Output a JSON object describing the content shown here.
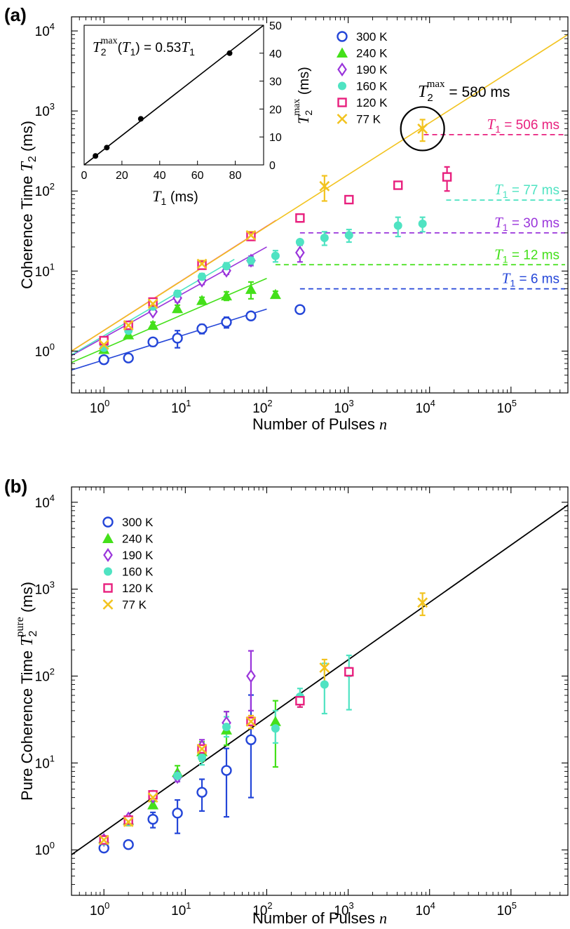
{
  "chart_data": [
    {
      "panel": "(a)",
      "type": "scatter",
      "xlabel": "Number of Pulses n",
      "xlabel_main": "Number of Pulses",
      "xlabel_var": "n",
      "ylabel_main": "Coherence Time",
      "ylabel_var": "T",
      "ylabel_sub": "2",
      "ylabel_unit": "(ms)",
      "x_scale": "log",
      "y_scale": "log",
      "xlim": [
        0.4,
        500000
      ],
      "ylim": [
        0.3,
        15000
      ],
      "x_ticks": [
        {
          "label": "10",
          "exp": "0"
        },
        {
          "label": "10",
          "exp": "1"
        },
        {
          "label": "10",
          "exp": "2"
        },
        {
          "label": "10",
          "exp": "3"
        },
        {
          "label": "10",
          "exp": "4"
        },
        {
          "label": "10",
          "exp": "5"
        }
      ],
      "y_ticks": [
        {
          "label": "10",
          "exp": "0"
        },
        {
          "label": "10",
          "exp": "1"
        },
        {
          "label": "10",
          "exp": "2"
        },
        {
          "label": "10",
          "exp": "3"
        },
        {
          "label": "10",
          "exp": "4"
        }
      ],
      "legend": {
        "placement": "top-center"
      },
      "series": [
        {
          "name": "300 K",
          "color": "#2446d8",
          "marker": "open-circle",
          "points": [
            [
              1,
              0.78
            ],
            [
              2,
              0.82
            ],
            [
              4,
              1.3
            ],
            [
              8,
              1.45
            ],
            [
              16,
              1.9
            ],
            [
              32,
              2.3
            ],
            [
              64,
              2.75
            ],
            [
              256,
              3.3
            ]
          ],
          "errors": [
            0.08,
            0.06,
            0.15,
            0.35,
            0.25,
            0.35,
            0.2,
            0.3
          ],
          "fit": {
            "x": [
              0.4,
              100
            ],
            "y": [
              0.58,
              3.35
            ]
          }
        },
        {
          "name": "240 K",
          "color": "#44e01a",
          "marker": "filled-triangle",
          "points": [
            [
              1,
              1.05
            ],
            [
              2,
              1.6
            ],
            [
              4,
              2.1
            ],
            [
              8,
              3.4
            ],
            [
              16,
              4.3
            ],
            [
              32,
              4.9
            ],
            [
              64,
              5.9
            ],
            [
              128,
              5.1
            ]
          ],
          "errors": [
            0.08,
            0.15,
            0.2,
            0.35,
            0.4,
            0.6,
            1.4,
            0.5
          ],
          "fit": {
            "x": [
              0.4,
              100
            ],
            "y": [
              0.72,
              8.1
            ]
          }
        },
        {
          "name": "190 K",
          "color": "#9a35db",
          "marker": "open-diamond",
          "points": [
            [
              1,
              1.2
            ],
            [
              2,
              2.0
            ],
            [
              4,
              3.1
            ],
            [
              8,
              4.6
            ],
            [
              16,
              7.6
            ],
            [
              32,
              10.1
            ],
            [
              64,
              13.5
            ],
            [
              256,
              17
            ]
          ],
          "errors": [
            0.1,
            0.15,
            0.25,
            0.5,
            0.8,
            1.0,
            1.8,
            4
          ],
          "fit": {
            "x": [
              0.4,
              100
            ],
            "y": [
              0.88,
              20
            ]
          }
        },
        {
          "name": "160 K",
          "color": "#4fe3c2",
          "marker": "filled-circle",
          "points": [
            [
              1,
              1.1
            ],
            [
              2,
              1.8
            ],
            [
              4,
              3.6
            ],
            [
              8,
              5.2
            ],
            [
              16,
              8.5
            ],
            [
              32,
              11.5
            ],
            [
              64,
              13.5
            ],
            [
              128,
              15.5
            ],
            [
              256,
              23
            ],
            [
              512,
              26
            ],
            [
              1024,
              28
            ],
            [
              4096,
              37
            ],
            [
              8192,
              39
            ]
          ],
          "errors": [
            0.1,
            0.15,
            0.3,
            0.5,
            0.8,
            1.2,
            1.5,
            2.5,
            2,
            5,
            5,
            10,
            8
          ],
          "fit": {
            "x": [
              0.4,
              40
            ],
            "y": [
              0.9,
              14
            ]
          }
        },
        {
          "name": "120 K",
          "color": "#e8207e",
          "marker": "open-square",
          "points": [
            [
              1,
              1.35
            ],
            [
              2,
              2.1
            ],
            [
              4,
              4.1
            ],
            [
              16,
              11.8
            ],
            [
              64,
              27
            ],
            [
              256,
              46
            ],
            [
              1024,
              78
            ],
            [
              4096,
              118
            ],
            [
              16384,
              150
            ]
          ],
          "errors": [
            0.1,
            0.2,
            0.3,
            1.0,
            2.5,
            5,
            8,
            12,
            50
          ],
          "fit": {
            "x": [
              0.4,
              130
            ],
            "y": [
              1.0,
              43
            ]
          }
        },
        {
          "name": "77 K",
          "color": "#f2c31f",
          "marker": "x-cross",
          "points": [
            [
              1,
              1.2
            ],
            [
              2,
              2.1
            ],
            [
              4,
              3.9
            ],
            [
              16,
              12.3
            ],
            [
              64,
              28
            ],
            [
              512,
              115
            ],
            [
              8192,
              600
            ]
          ],
          "errors": [
            0.1,
            0.2,
            0.3,
            1.2,
            3,
            40,
            180
          ],
          "fit": {
            "x": [
              0.4,
              500000
            ],
            "y": [
              1.0,
              9000
            ]
          }
        }
      ],
      "limits": [
        {
          "label_var": "T",
          "label_sub": "1",
          "label_value": "= 506 ms",
          "color": "#e8207e",
          "y": 506,
          "x_start": 8500
        },
        {
          "label_var": "T",
          "label_sub": "1",
          "label_value": "= 77 ms",
          "color": "#4fe3c2",
          "y": 77,
          "x_start": 16000
        },
        {
          "label_var": "T",
          "label_sub": "1",
          "label_value": "= 30 ms",
          "color": "#9a35db",
          "y": 30,
          "x_start": 256
        },
        {
          "label_var": "T",
          "label_sub": "1",
          "label_value": "= 12 ms",
          "color": "#44e01a",
          "y": 12,
          "x_start": 128
        },
        {
          "label_var": "T",
          "label_sub": "1",
          "label_value": "= 6 ms",
          "color": "#2446d8",
          "y": 6,
          "x_start": 256
        }
      ],
      "annotation": {
        "var": "T",
        "sub": "2",
        "sup": "max",
        "value": "= 580 ms",
        "circle_x": 8192,
        "circle_y": 600
      },
      "inset": {
        "type": "scatter",
        "equation_lhs_var": "T",
        "equation_sub": "2",
        "equation_sup": "max",
        "equation_arg_var": "T",
        "equation_arg_sub": "1",
        "equation_rhs": "= 0.53",
        "equation_rhs_var": "T",
        "equation_rhs_sub": "1",
        "equation_text": "T2max(T1) = 0.53T1",
        "xlabel_var": "T",
        "xlabel_sub": "1",
        "xlabel_unit": "(ms)",
        "ylabel_var": "T",
        "ylabel_sub": "2",
        "ylabel_sup": "max",
        "ylabel_unit": "(ms)",
        "xlim": [
          0,
          95
        ],
        "ylim": [
          0,
          50
        ],
        "x_ticks": [
          "0",
          "20",
          "40",
          "60",
          "80"
        ],
        "y_ticks": [
          "0",
          "10",
          "20",
          "30",
          "40",
          "50"
        ],
        "points": [
          [
            6,
            3.2
          ],
          [
            12,
            6.2
          ],
          [
            30,
            16.5
          ],
          [
            77,
            40
          ]
        ],
        "fit": {
          "x": [
            0,
            95
          ],
          "y": [
            0,
            50.35
          ]
        }
      }
    },
    {
      "panel": "(b)",
      "type": "scatter",
      "xlabel": "Number of Pulses n",
      "xlabel_main": "Number of Pulses",
      "xlabel_var": "n",
      "ylabel_main": "Pure Coherence Time",
      "ylabel_var": "T",
      "ylabel_sub": "2",
      "ylabel_sup": "pure",
      "ylabel_unit": "(ms)",
      "x_scale": "log",
      "y_scale": "log",
      "xlim": [
        0.4,
        500000
      ],
      "ylim": [
        0.3,
        15000
      ],
      "x_ticks": [
        {
          "label": "10",
          "exp": "0"
        },
        {
          "label": "10",
          "exp": "1"
        },
        {
          "label": "10",
          "exp": "2"
        },
        {
          "label": "10",
          "exp": "3"
        },
        {
          "label": "10",
          "exp": "4"
        },
        {
          "label": "10",
          "exp": "5"
        }
      ],
      "y_ticks": [
        {
          "label": "10",
          "exp": "0"
        },
        {
          "label": "10",
          "exp": "1"
        },
        {
          "label": "10",
          "exp": "2"
        },
        {
          "label": "10",
          "exp": "3"
        },
        {
          "label": "10",
          "exp": "4"
        }
      ],
      "legend": {
        "placement": "top-left"
      },
      "series": [
        {
          "name": "300 K",
          "color": "#2446d8",
          "marker": "open-circle",
          "points": [
            [
              1,
              1.05
            ],
            [
              2,
              1.15
            ],
            [
              4,
              2.25
            ],
            [
              8,
              2.65
            ],
            [
              16,
              4.6
            ],
            [
              32,
              8.2
            ],
            [
              64,
              18.5
            ]
          ],
          "errors_lo": [
            0.1,
            0.08,
            0.45,
            1.1,
            1.8,
            5.8,
            14.5
          ],
          "errors_hi": [
            0.1,
            0.08,
            0.45,
            1.1,
            1.9,
            6.5,
            42
          ]
        },
        {
          "name": "240 K",
          "color": "#44e01a",
          "marker": "filled-triangle",
          "points": [
            [
              1,
              1.35
            ],
            [
              2,
              2.2
            ],
            [
              4,
              3.3
            ],
            [
              8,
              7.8
            ],
            [
              16,
              13.5
            ],
            [
              32,
              24
            ],
            [
              128,
              30
            ]
          ],
          "errors_lo": [
            0.1,
            0.2,
            0.3,
            1.2,
            3,
            8,
            21
          ],
          "errors_hi": [
            0.1,
            0.2,
            0.3,
            1.5,
            4,
            15,
            22
          ]
        },
        {
          "name": "190 K",
          "color": "#9a35db",
          "marker": "open-diamond",
          "points": [
            [
              1,
              1.3
            ],
            [
              2,
              2.3
            ],
            [
              4,
              4.1
            ],
            [
              8,
              6.9
            ],
            [
              16,
              15.5
            ],
            [
              32,
              29
            ],
            [
              64,
              100
            ]
          ],
          "errors_lo": [
            0.1,
            0.2,
            0.3,
            0.8,
            2.5,
            6,
            60
          ],
          "errors_hi": [
            0.1,
            0.2,
            0.3,
            0.8,
            3,
            10,
            95
          ]
        },
        {
          "name": "160 K",
          "color": "#4fe3c2",
          "marker": "filled-circle",
          "points": [
            [
              1,
              1.25
            ],
            [
              2,
              2.1
            ],
            [
              4,
              4.4
            ],
            [
              8,
              7.1
            ],
            [
              16,
              11.5
            ],
            [
              32,
              26
            ],
            [
              128,
              25
            ],
            [
              256,
              58
            ],
            [
              512,
              80
            ],
            [
              1024,
              108
            ]
          ],
          "errors_lo": [
            0.1,
            0.2,
            0.3,
            0.8,
            2,
            6,
            8,
            14,
            43,
            67
          ],
          "errors_hi": [
            0.1,
            0.2,
            0.3,
            0.8,
            2,
            8,
            15,
            14,
            60,
            65
          ]
        },
        {
          "name": "120 K",
          "color": "#e8207e",
          "marker": "open-square",
          "points": [
            [
              1,
              1.3
            ],
            [
              2,
              2.2
            ],
            [
              4,
              4.3
            ],
            [
              16,
              14.5
            ],
            [
              64,
              30
            ],
            [
              256,
              52
            ],
            [
              1024,
              112
            ]
          ],
          "errors_lo": [
            0.1,
            0.2,
            0.3,
            2,
            5,
            8,
            12
          ],
          "errors_hi": [
            0.1,
            0.2,
            0.3,
            2,
            5,
            8,
            12
          ]
        },
        {
          "name": "77 K",
          "color": "#f2c31f",
          "marker": "x-cross",
          "points": [
            [
              1,
              1.3
            ],
            [
              2,
              2.1
            ],
            [
              4,
              4.0
            ],
            [
              16,
              14.5
            ],
            [
              64,
              30
            ],
            [
              512,
              125
            ],
            [
              8192,
              700
            ]
          ],
          "errors_lo": [
            0.1,
            0.2,
            0.3,
            2,
            5,
            40,
            200
          ],
          "errors_hi": [
            0.1,
            0.2,
            0.3,
            2,
            5,
            30,
            200
          ]
        }
      ],
      "fit": {
        "x": [
          0.4,
          500000
        ],
        "y": [
          0.88,
          9300
        ]
      }
    }
  ]
}
